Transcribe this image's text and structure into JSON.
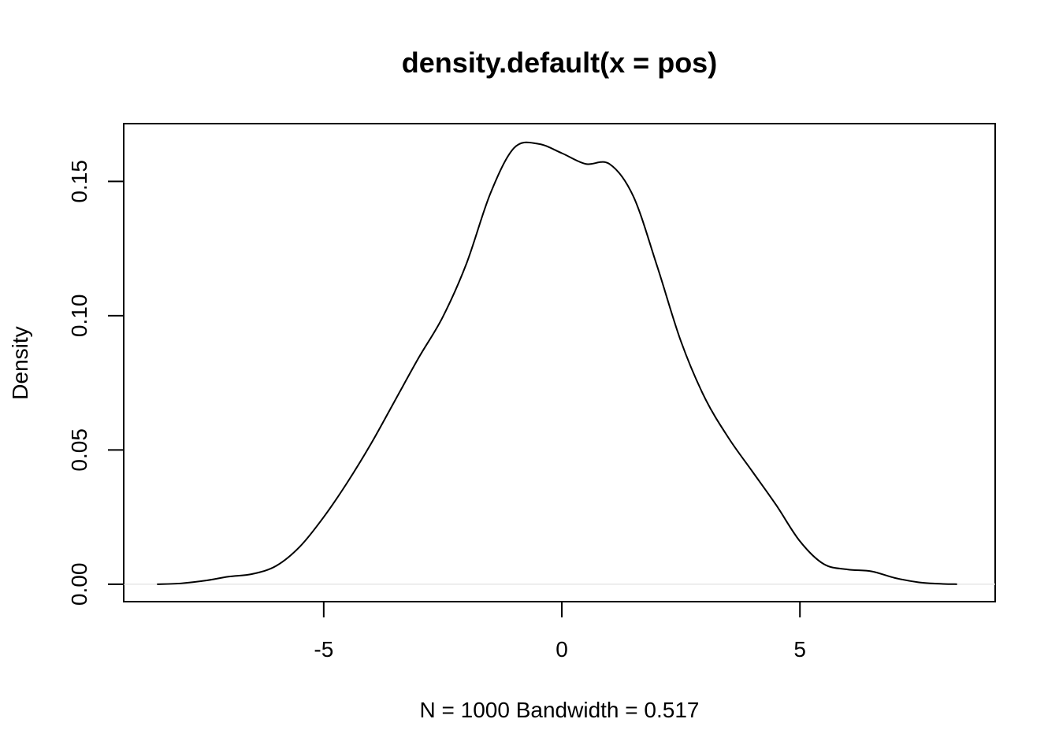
{
  "chart_data": {
    "type": "line",
    "title": "density.default(x = pos)",
    "xlabel": "N = 1000   Bandwidth = 0.517",
    "ylabel": "Density",
    "xlim": [
      -9.2,
      9.1
    ],
    "ylim": [
      -0.0065,
      0.1715
    ],
    "x_ticks": [
      -5,
      0,
      5
    ],
    "x_tick_labels": [
      "-5",
      "0",
      "5"
    ],
    "y_ticks": [
      0.0,
      0.05,
      0.1,
      0.15
    ],
    "y_tick_labels": [
      "0.00",
      "0.05",
      "0.10",
      "0.15"
    ],
    "grid": false,
    "series": [
      {
        "x": [
          -8.5,
          -8.0,
          -7.5,
          -7.0,
          -6.5,
          -6.0,
          -5.5,
          -5.0,
          -4.5,
          -4.0,
          -3.5,
          -3.0,
          -2.5,
          -2.0,
          -1.5,
          -1.0,
          -0.5,
          0.0,
          0.5,
          1.0,
          1.5,
          2.0,
          2.5,
          3.0,
          3.5,
          4.0,
          4.5,
          5.0,
          5.5,
          6.0,
          6.5,
          7.0,
          7.5,
          8.0,
          8.3
        ],
        "y": [
          0.0,
          0.0003,
          0.0013,
          0.0028,
          0.0038,
          0.0068,
          0.014,
          0.025,
          0.038,
          0.0525,
          0.0685,
          0.0845,
          0.0995,
          0.1195,
          0.1455,
          0.1625,
          0.164,
          0.1605,
          0.1565,
          0.1565,
          0.1445,
          0.1185,
          0.0905,
          0.0695,
          0.0545,
          0.042,
          0.0295,
          0.016,
          0.0075,
          0.0055,
          0.0048,
          0.0023,
          0.0007,
          0.0001,
          0.0
        ]
      }
    ]
  }
}
